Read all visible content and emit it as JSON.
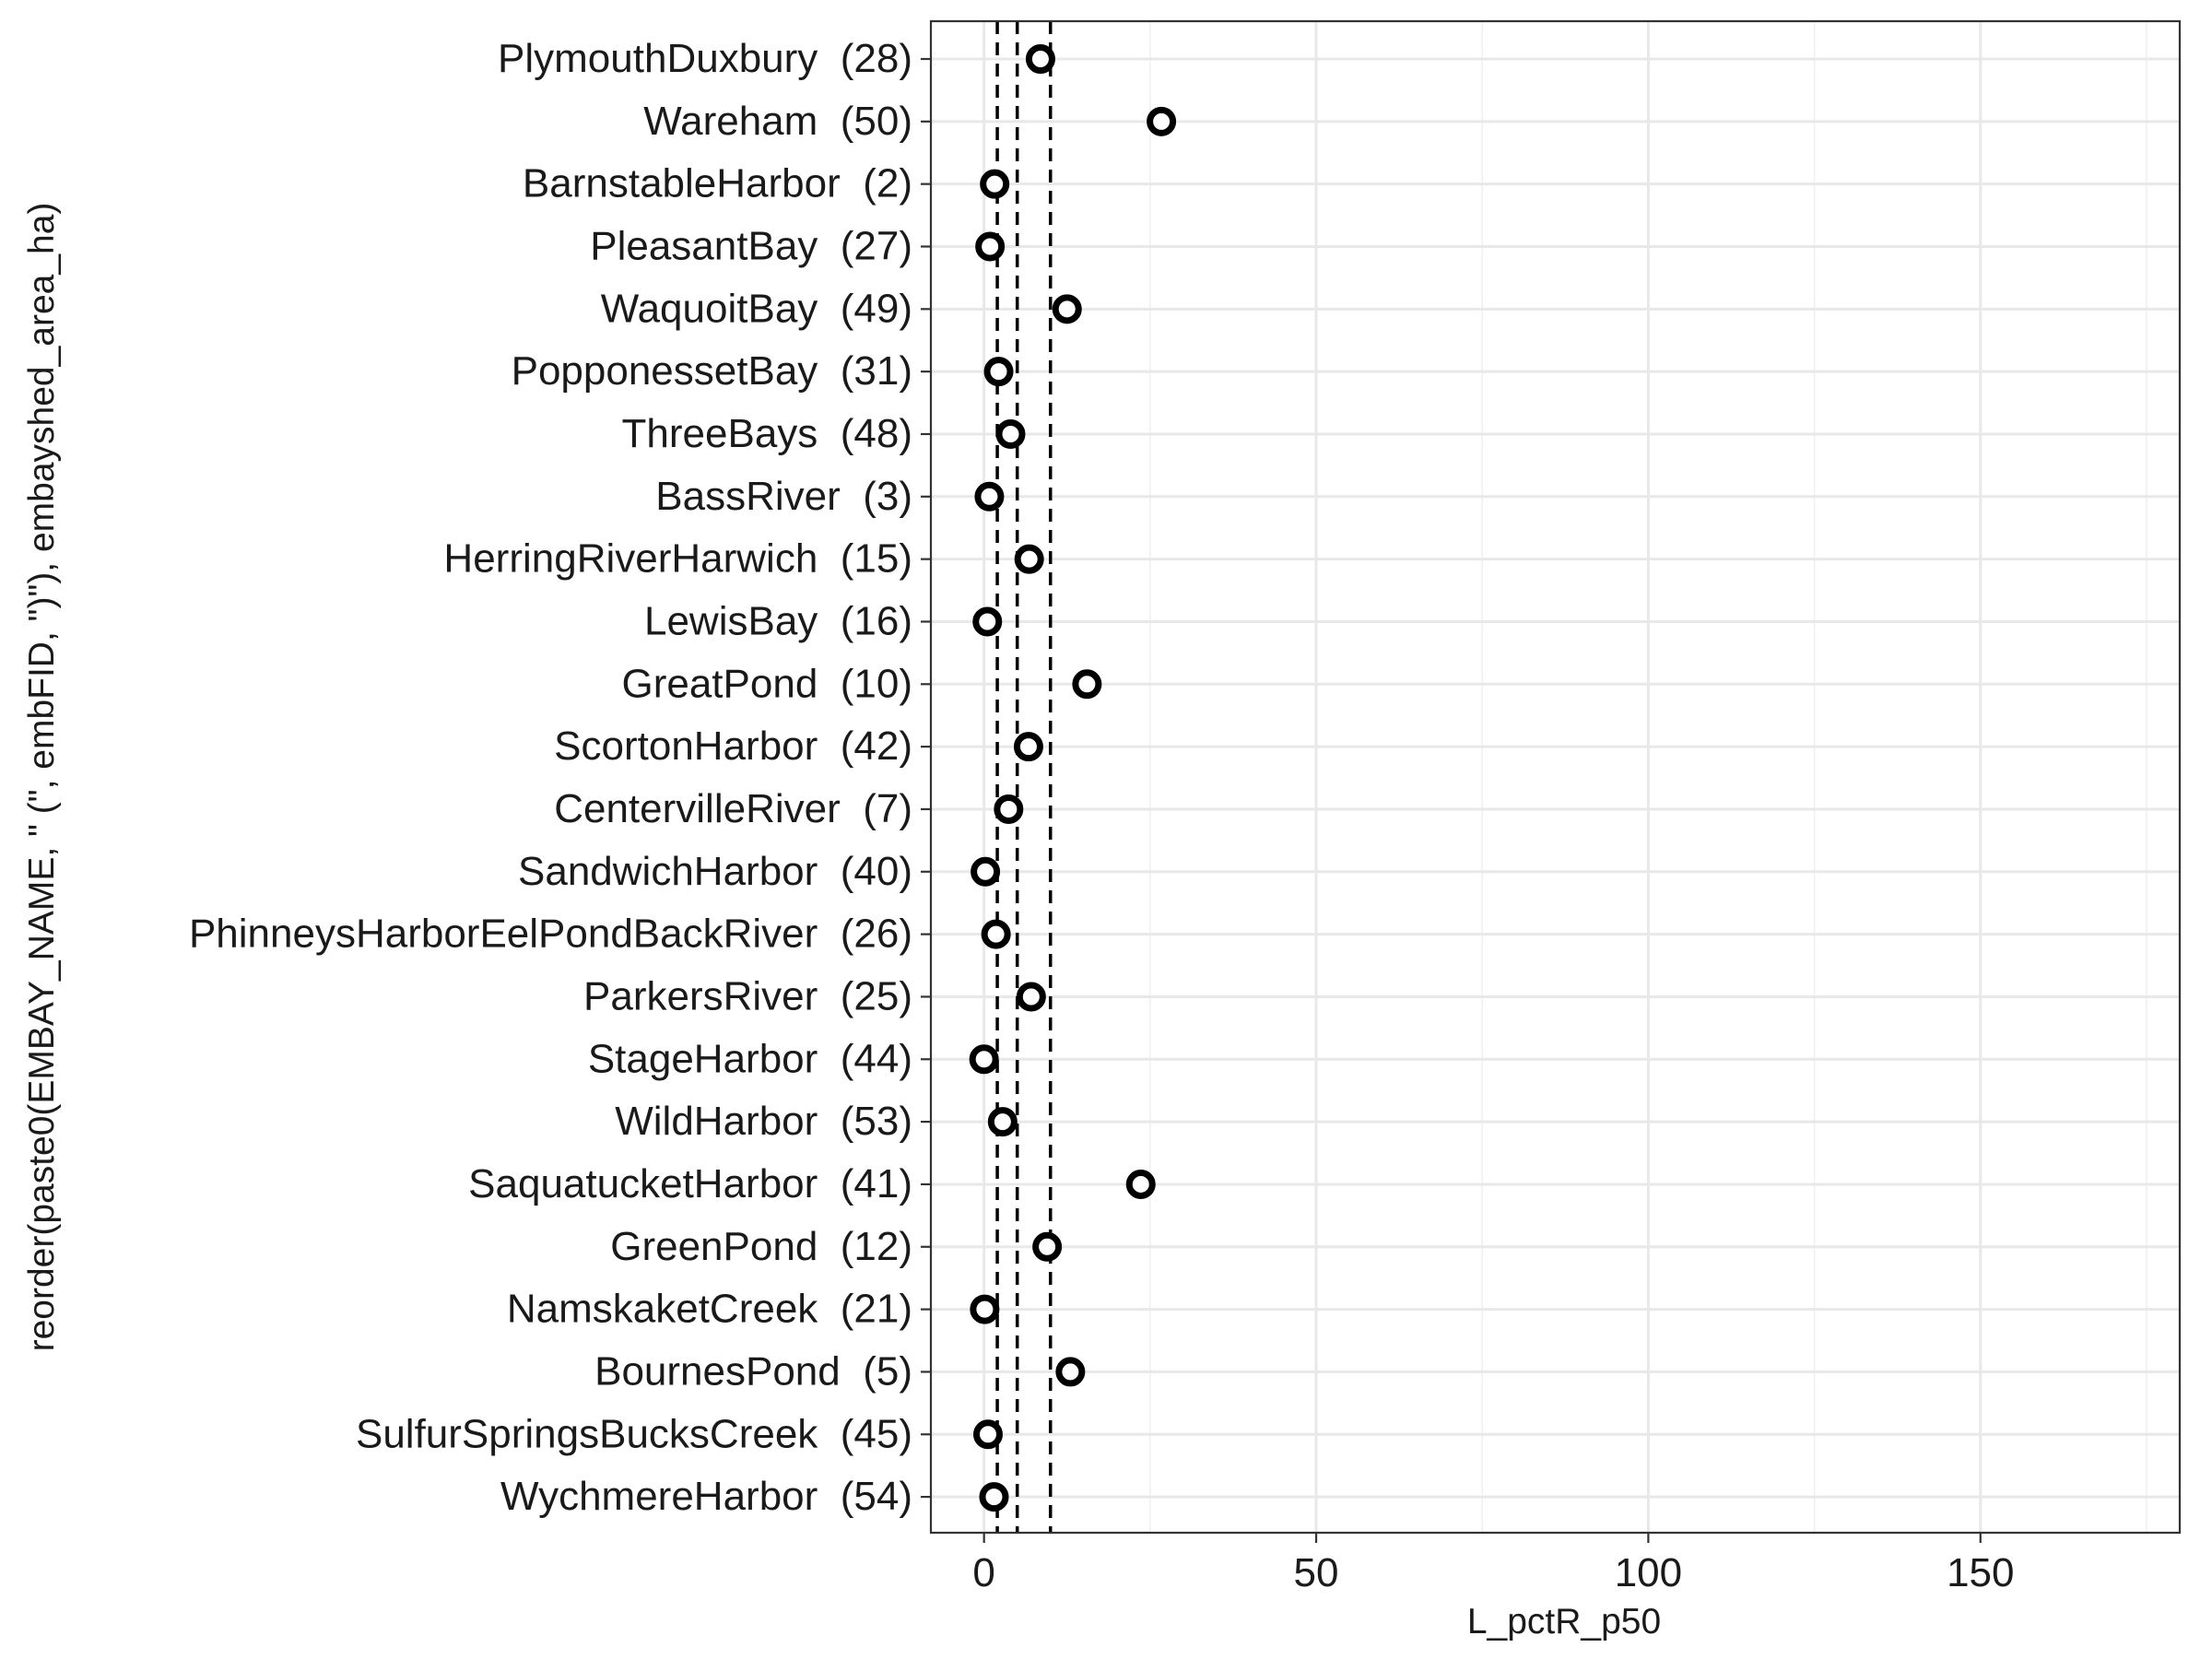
{
  "chart_data": {
    "type": "scatter",
    "xlabel": "L_pctR_p50",
    "ylabel": "reorder(paste0(EMBAY_NAME, \"   (\", embFID, \")\"), embayshed_area_ha)",
    "xlim": [
      -8,
      180
    ],
    "x_ticks": [
      0,
      50,
      100,
      150
    ],
    "x_tick_labels": [
      "0",
      "50",
      "100",
      "150"
    ],
    "grid": true,
    "reference_lines_x": [
      2,
      5,
      10
    ],
    "points": [
      {
        "name": "PlymouthDuxbury",
        "fid": "(28)",
        "x": 8.5
      },
      {
        "name": "Wareham",
        "fid": "(50)",
        "x": 26.7
      },
      {
        "name": "BarnstableHarbor",
        "fid": "(2)",
        "x": 1.6
      },
      {
        "name": "PleasantBay",
        "fid": "(27)",
        "x": 0.9
      },
      {
        "name": "WaquoitBay",
        "fid": "(49)",
        "x": 12.5
      },
      {
        "name": "PopponessetBay",
        "fid": "(31)",
        "x": 2.2
      },
      {
        "name": "ThreeBays",
        "fid": "(48)",
        "x": 4.0
      },
      {
        "name": "BassRiver",
        "fid": "(3)",
        "x": 0.8
      },
      {
        "name": "HerringRiverHarwich",
        "fid": "(15)",
        "x": 6.8
      },
      {
        "name": "LewisBay",
        "fid": "(16)",
        "x": 0.5
      },
      {
        "name": "GreatPond",
        "fid": "(10)",
        "x": 15.5
      },
      {
        "name": "ScortonHarbor",
        "fid": "(42)",
        "x": 6.7
      },
      {
        "name": "CentervilleRiver",
        "fid": "(7)",
        "x": 3.7
      },
      {
        "name": "SandwichHarbor",
        "fid": "(40)",
        "x": 0.2
      },
      {
        "name": "PhinneysHarborEelPondBackRiver",
        "fid": "(26)",
        "x": 1.8
      },
      {
        "name": "ParkersRiver",
        "fid": "(25)",
        "x": 7.1
      },
      {
        "name": "StageHarbor",
        "fid": "(44)",
        "x": 0.0
      },
      {
        "name": "WildHarbor",
        "fid": "(53)",
        "x": 2.8
      },
      {
        "name": "SaquatucketHarbor",
        "fid": "(41)",
        "x": 23.6
      },
      {
        "name": "GreenPond",
        "fid": "(12)",
        "x": 9.5
      },
      {
        "name": "NamskaketCreek",
        "fid": "(21)",
        "x": 0.1
      },
      {
        "name": "BournesPond",
        "fid": "(5)",
        "x": 13.0
      },
      {
        "name": "SulfurSpringsBucksCreek",
        "fid": "(45)",
        "x": 0.6
      },
      {
        "name": "WychmereHarbor",
        "fid": "(54)",
        "x": 1.5
      }
    ]
  }
}
